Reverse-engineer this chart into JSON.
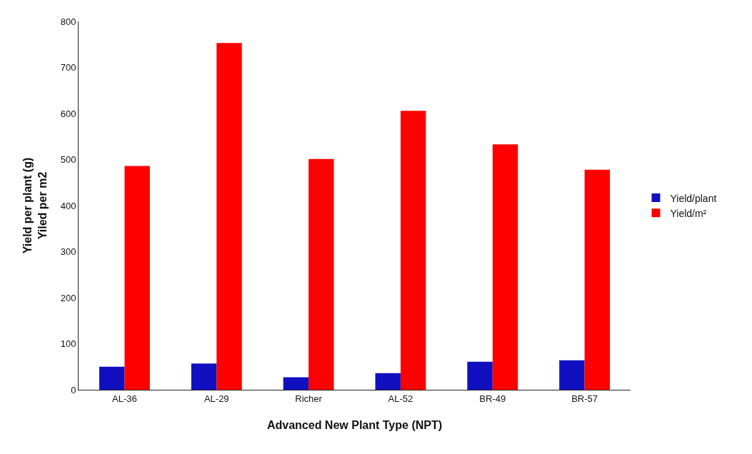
{
  "chart_data": {
    "type": "bar",
    "xlabel": "Advanced New Plant Type (NPT)",
    "ylabel": "Yield per plant (g)\nYiled per m2",
    "categories": [
      "AL-36",
      "AL-29",
      "Richer",
      "AL-52",
      "BR-49",
      "BR-57"
    ],
    "series": [
      {
        "name": "Yield/plant",
        "color": "#1010c0",
        "values": [
          50,
          57,
          27,
          36,
          61,
          64
        ]
      },
      {
        "name": "Yield/m²",
        "color": "#ff0000",
        "values": [
          486,
          753,
          501,
          606,
          533,
          478
        ]
      }
    ],
    "ylim": [
      0,
      800
    ],
    "yticks": [
      0,
      100,
      200,
      300,
      400,
      500,
      600,
      700,
      800
    ],
    "legend": "right"
  }
}
